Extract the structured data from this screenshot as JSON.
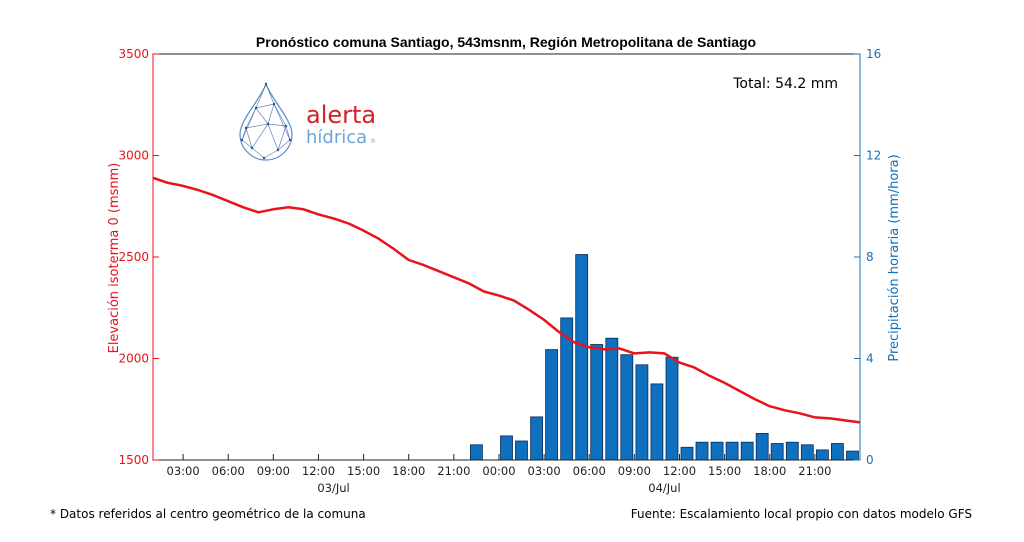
{
  "footer": {
    "left_note": "* Datos referidos al centro geométrico de la comuna",
    "right_note": "Fuente: Escalamiento local propio con datos modelo GFS"
  },
  "logo": {
    "line1": "alerta",
    "line2": "hídrica",
    "mark": "®",
    "icon": "water-drop-network-icon"
  },
  "colors": {
    "isotherm": "#e8131b",
    "precip": "#1070c0",
    "precip_edge": "#0b2a5a",
    "axis_right": "#1570b8"
  },
  "chart_data": {
    "type": "bar+line",
    "title": "Pronóstico comuna Santiago, 543msnm,  Región Metropolitana de Santiago",
    "annotation": "Total: 54.2 mm",
    "xlabel": "",
    "y_left_label": "Elevación isoterma 0 (msnm)",
    "y_right_label": "Precipitación horaria (mm/hora)",
    "y_left_lim": [
      1500,
      3500
    ],
    "y_right_lim": [
      0,
      16
    ],
    "y_left_ticks": [
      1500,
      2000,
      2500,
      3000,
      3500
    ],
    "y_right_ticks": [
      0,
      4,
      8,
      12,
      16
    ],
    "x_lim_hours": [
      0,
      47
    ],
    "x_ticks": [
      {
        "h": 2,
        "label": "03:00"
      },
      {
        "h": 5,
        "label": "06:00"
      },
      {
        "h": 8,
        "label": "09:00"
      },
      {
        "h": 11,
        "label": "12:00"
      },
      {
        "h": 14,
        "label": "15:00"
      },
      {
        "h": 17,
        "label": "18:00"
      },
      {
        "h": 20,
        "label": "21:00"
      },
      {
        "h": 23,
        "label": "00:00"
      },
      {
        "h": 26,
        "label": "03:00"
      },
      {
        "h": 29,
        "label": "06:00"
      },
      {
        "h": 32,
        "label": "09:00"
      },
      {
        "h": 35,
        "label": "12:00"
      },
      {
        "h": 38,
        "label": "15:00"
      },
      {
        "h": 41,
        "label": "18:00"
      },
      {
        "h": 44,
        "label": "21:00"
      }
    ],
    "x_dates": [
      {
        "h": 12,
        "label": "03/Jul"
      },
      {
        "h": 34,
        "label": "04/Jul"
      }
    ],
    "series": [
      {
        "name": "Elevación isoterma 0",
        "type": "line",
        "axis": "left",
        "x": [
          0,
          1,
          2,
          3,
          4,
          5,
          6,
          7,
          8,
          9,
          10,
          11,
          12,
          13,
          14,
          15,
          16,
          17,
          18,
          19,
          20,
          21,
          22,
          23,
          24,
          25,
          26,
          27,
          28,
          29,
          30,
          31,
          32,
          33,
          34,
          35,
          36,
          37,
          38,
          39,
          40,
          41,
          42,
          43,
          44,
          45,
          46,
          47
        ],
        "values": [
          2890,
          2865,
          2850,
          2830,
          2805,
          2775,
          2745,
          2720,
          2735,
          2745,
          2735,
          2710,
          2690,
          2665,
          2630,
          2590,
          2540,
          2485,
          2460,
          2430,
          2400,
          2370,
          2330,
          2310,
          2285,
          2240,
          2190,
          2130,
          2080,
          2055,
          2045,
          2050,
          2025,
          2030,
          2025,
          1980,
          1955,
          1915,
          1880,
          1840,
          1800,
          1765,
          1745,
          1730,
          1710,
          1705,
          1695,
          1685
        ]
      },
      {
        "name": "Precipitación horaria",
        "type": "bar",
        "axis": "right",
        "x": [
          21.5,
          23.5,
          24.5,
          25.5,
          26.5,
          27.5,
          28.5,
          29.5,
          30.5,
          31.5,
          32.5,
          33.5,
          34.5,
          35.5,
          36.5,
          37.5,
          38.5,
          39.5,
          40.5,
          41.5,
          42.5,
          43.5,
          44.5,
          45.5,
          46.5
        ],
        "values": [
          0.6,
          0.95,
          0.75,
          1.7,
          4.35,
          5.6,
          8.1,
          4.55,
          4.8,
          4.15,
          3.75,
          3.0,
          4.05,
          0.5,
          0.7,
          0.7,
          0.7,
          0.7,
          1.05,
          0.65,
          0.7,
          0.6,
          0.4,
          0.65,
          0.35
        ]
      }
    ]
  }
}
